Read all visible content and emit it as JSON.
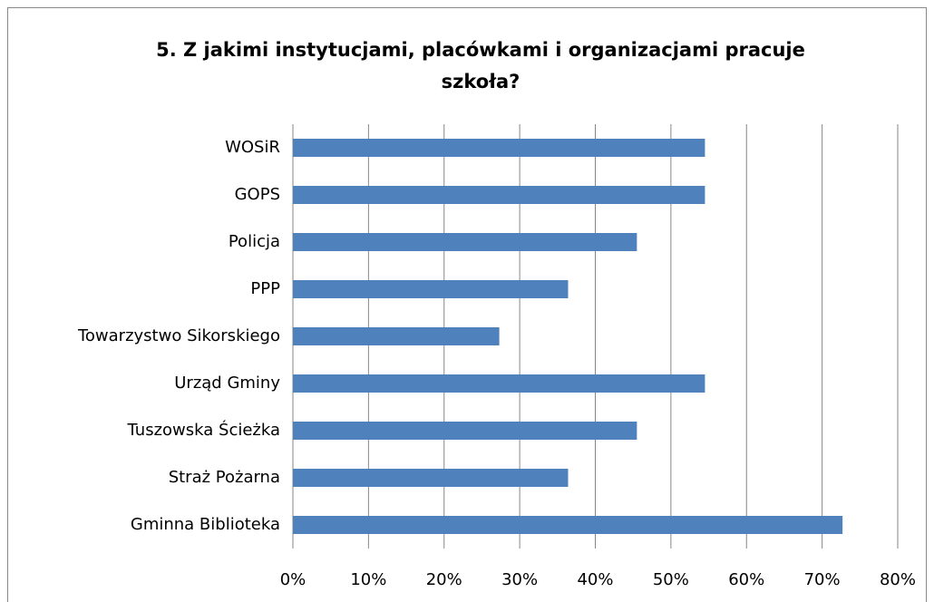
{
  "chart_data": {
    "type": "bar",
    "orientation": "horizontal",
    "title": "5. Z jakimi instytucjami, placówkami i organizacjami pracuje szkoła?",
    "categories": [
      "WOSiR",
      "GOPS",
      "Policja",
      "PPP",
      "Towarzystwo Sikorskiego",
      "Urząd Gminy",
      "Tuszowska Ścieżka",
      "Straż Pożarna",
      "Gminna Biblioteka"
    ],
    "values": [
      54.5,
      54.5,
      45.5,
      36.4,
      27.3,
      54.5,
      45.5,
      36.4,
      72.7
    ],
    "color": "#4f81bd",
    "xlim": [
      0,
      80
    ],
    "xticks": [
      {
        "value": 0,
        "label": "0%"
      },
      {
        "value": 10,
        "label": "10%"
      },
      {
        "value": 20,
        "label": "20%"
      },
      {
        "value": 30,
        "label": "30%"
      },
      {
        "value": 40,
        "label": "40%"
      },
      {
        "value": 50,
        "label": "50%"
      },
      {
        "value": 60,
        "label": "60%"
      },
      {
        "value": 70,
        "label": "70%"
      },
      {
        "value": 80,
        "label": "80%"
      }
    ],
    "grid": true
  }
}
